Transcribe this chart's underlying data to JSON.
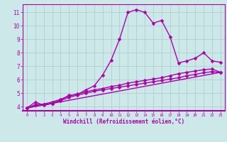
{
  "xlabel": "Windchill (Refroidissement éolien,°C)",
  "background_color": "#cce8e8",
  "line_color": "#aa00aa",
  "grid_color": "#aacccc",
  "xlim": [
    -0.5,
    23.5
  ],
  "ylim": [
    3.7,
    11.6
  ],
  "yticks": [
    4,
    5,
    6,
    7,
    8,
    9,
    10,
    11
  ],
  "series": [
    {
      "x": [
        0,
        1,
        2,
        3,
        4,
        5,
        6,
        7,
        8,
        9,
        10,
        11,
        12,
        13,
        14,
        15,
        16,
        17,
        18,
        19,
        20,
        21,
        22,
        23
      ],
      "y": [
        3.9,
        4.35,
        4.1,
        4.25,
        4.5,
        4.85,
        4.9,
        5.25,
        5.55,
        6.35,
        7.45,
        9.0,
        11.0,
        11.2,
        11.0,
        10.2,
        10.4,
        9.2,
        7.25,
        7.4,
        7.6,
        8.0,
        7.4,
        7.3
      ],
      "marker": true,
      "markersize": 2.5,
      "linewidth": 1.0
    },
    {
      "x": [
        0,
        1,
        2,
        3,
        4,
        5,
        6,
        7,
        8,
        9,
        10,
        11,
        12,
        13,
        14,
        15,
        16,
        17,
        18,
        19,
        20,
        21,
        22,
        23
      ],
      "y": [
        3.9,
        4.1,
        4.15,
        4.25,
        4.45,
        4.7,
        4.85,
        5.0,
        5.15,
        5.25,
        5.35,
        5.45,
        5.55,
        5.65,
        5.75,
        5.85,
        5.95,
        6.05,
        6.15,
        6.3,
        6.4,
        6.52,
        6.6,
        6.55
      ],
      "marker": true,
      "markersize": 2.5,
      "linewidth": 1.0
    },
    {
      "x": [
        0,
        23
      ],
      "y": [
        3.9,
        6.55
      ],
      "marker": false,
      "markersize": 0,
      "linewidth": 1.0
    },
    {
      "x": [
        0,
        1,
        2,
        3,
        4,
        5,
        6,
        7,
        8,
        9,
        10,
        11,
        12,
        13,
        14,
        15,
        16,
        17,
        18,
        19,
        20,
        21,
        22,
        23
      ],
      "y": [
        3.9,
        4.15,
        4.2,
        4.35,
        4.55,
        4.8,
        4.95,
        5.1,
        5.25,
        5.35,
        5.5,
        5.6,
        5.75,
        5.85,
        5.95,
        6.05,
        6.15,
        6.3,
        6.45,
        6.55,
        6.65,
        6.75,
        6.8,
        6.55
      ],
      "marker": true,
      "markersize": 2.5,
      "linewidth": 1.0
    }
  ]
}
